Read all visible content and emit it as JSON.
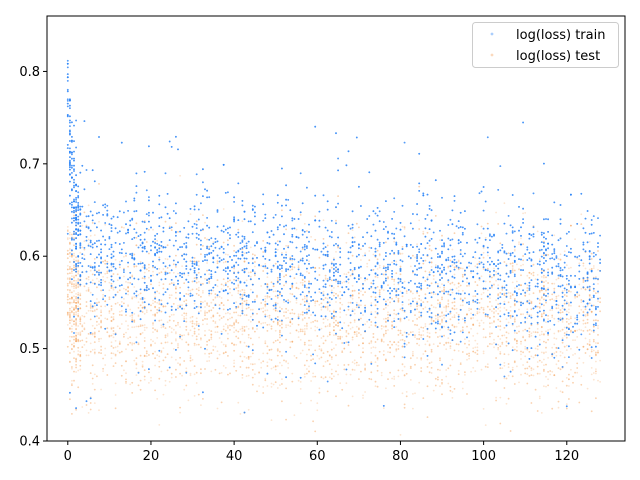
{
  "chart_data": {
    "type": "scatter",
    "title": "",
    "xlabel": "",
    "ylabel": "",
    "xlim": [
      -5,
      134
    ],
    "ylim": [
      0.4,
      0.86
    ],
    "x_ticks": [
      0,
      20,
      40,
      60,
      80,
      100,
      120
    ],
    "x_tick_labels": [
      "0",
      "20",
      "40",
      "60",
      "80",
      "100",
      "120"
    ],
    "y_ticks": [
      0.4,
      0.5,
      0.6,
      0.7,
      0.8
    ],
    "y_tick_labels": [
      "0.4",
      "0.5",
      "0.6",
      "0.7",
      "0.8"
    ],
    "grid": false,
    "legend_position": "top-right",
    "series": [
      {
        "name": "log(loss) train",
        "color": "#1f77b4",
        "display_color": "#2a84f8",
        "x_range": [
          0,
          128
        ],
        "y_at_start": 0.78,
        "y_at_end": 0.575,
        "y_spread": 0.035,
        "y_outlier_range": [
          0.43,
          0.75
        ]
      },
      {
        "name": "log(loss) test",
        "color": "#ff7f0e",
        "display_color": "#f5a05a",
        "x_range": [
          0,
          128
        ],
        "y_at_start": 0.57,
        "y_at_end": 0.53,
        "y_spread": 0.04,
        "y_outlier_range": [
          0.43,
          0.65
        ]
      }
    ]
  }
}
